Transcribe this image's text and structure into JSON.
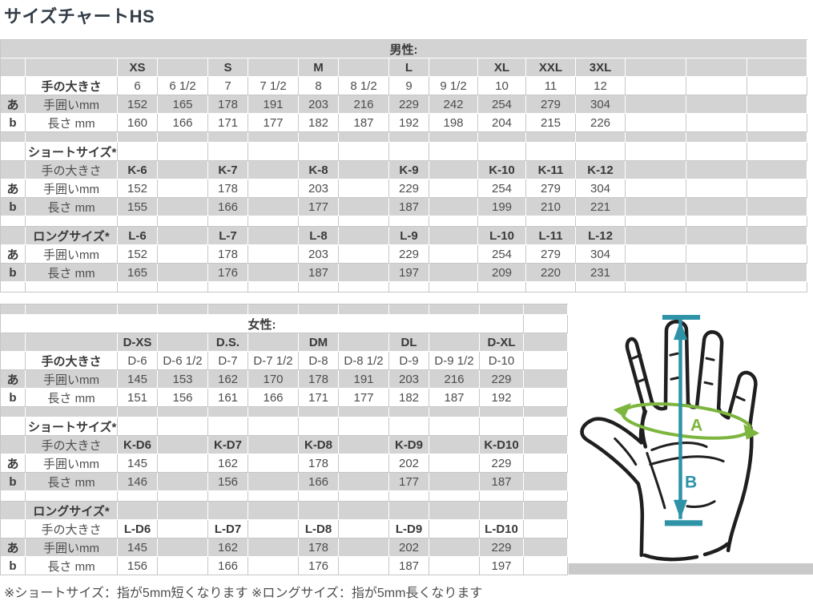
{
  "title": "サイズチャートHS",
  "footer_note": "※ショートサイズ：指が5mm短くなります ※ロングサイズ：指が5mm長くなります",
  "colors": {
    "row_shade": "#d3d3d3",
    "border_light": "#c7c7c7",
    "title_text": "#333d47",
    "ink": "#1f1f1f",
    "teal": "#2f93a8",
    "green": "#7db53f"
  },
  "diagram": {
    "label_a": "A",
    "label_b": "B",
    "description": "hand-with-girth-A-and-length-B-measurements"
  },
  "men_table": {
    "rows": [
      {
        "bg": "grey",
        "cells": [
          {
            "c": 0,
            "s": 16,
            "t": "男性:",
            "b": 1,
            "n": "men-caption"
          }
        ]
      },
      {
        "bg": "grey",
        "cells": [
          {
            "c": 2,
            "t": "XS",
            "b": 1,
            "n": "size-header"
          },
          {
            "c": 4,
            "t": "S",
            "b": 1,
            "n": "size-header"
          },
          {
            "c": 6,
            "t": "M",
            "b": 1,
            "n": "size-header"
          },
          {
            "c": 8,
            "t": "L",
            "b": 1,
            "n": "size-header"
          },
          {
            "c": 10,
            "t": "XL",
            "b": 1,
            "n": "size-header"
          },
          {
            "c": 11,
            "t": "XXL",
            "b": 1,
            "n": "size-header"
          },
          {
            "c": 12,
            "t": "3XL",
            "b": 1,
            "n": "size-header"
          }
        ]
      },
      {
        "bg": "white",
        "cells": [
          {
            "c": 1,
            "t": "手の大きさ",
            "b": 1,
            "a": "l",
            "n": "row-label"
          },
          {
            "c": 2,
            "t": "6"
          },
          {
            "c": 3,
            "t": "6 1/2"
          },
          {
            "c": 4,
            "t": "7"
          },
          {
            "c": 5,
            "t": "7 1/2"
          },
          {
            "c": 6,
            "t": "8"
          },
          {
            "c": 7,
            "t": "8 1/2"
          },
          {
            "c": 8,
            "t": "9"
          },
          {
            "c": 9,
            "t": "9 1/2"
          },
          {
            "c": 10,
            "t": "10"
          },
          {
            "c": 11,
            "t": "11"
          },
          {
            "c": 12,
            "t": "12"
          }
        ]
      },
      {
        "bg": "grey",
        "cells": [
          {
            "c": 0,
            "t": "あ",
            "b": 1,
            "n": "row-marker"
          },
          {
            "c": 1,
            "t": "手囲いmm",
            "a": "l",
            "n": "row-label"
          },
          {
            "c": 2,
            "t": "152"
          },
          {
            "c": 3,
            "t": "165"
          },
          {
            "c": 4,
            "t": "178"
          },
          {
            "c": 5,
            "t": "191"
          },
          {
            "c": 6,
            "t": "203"
          },
          {
            "c": 7,
            "t": "216"
          },
          {
            "c": 8,
            "t": "229"
          },
          {
            "c": 9,
            "t": "242"
          },
          {
            "c": 10,
            "t": "254"
          },
          {
            "c": 11,
            "t": "279"
          },
          {
            "c": 12,
            "t": "304"
          }
        ]
      },
      {
        "bg": "white",
        "cells": [
          {
            "c": 0,
            "t": "b",
            "b": 1,
            "n": "row-marker"
          },
          {
            "c": 1,
            "t": "長さ mm",
            "a": "l",
            "n": "row-label"
          },
          {
            "c": 2,
            "t": "160"
          },
          {
            "c": 3,
            "t": "166"
          },
          {
            "c": 4,
            "t": "171"
          },
          {
            "c": 5,
            "t": "177"
          },
          {
            "c": 6,
            "t": "182"
          },
          {
            "c": 7,
            "t": "187"
          },
          {
            "c": 8,
            "t": "192"
          },
          {
            "c": 9,
            "t": "198"
          },
          {
            "c": 10,
            "t": "204"
          },
          {
            "c": 11,
            "t": "215"
          },
          {
            "c": 12,
            "t": "226"
          }
        ]
      },
      {
        "bg": "grey",
        "h": "spacer"
      },
      {
        "bg": "white",
        "cells": [
          {
            "c": 1,
            "t": "ショートサイズ*",
            "b": 1,
            "a": "l",
            "n": "section-label"
          }
        ]
      },
      {
        "bg": "grey",
        "cells": [
          {
            "c": 1,
            "t": "手の大きさ",
            "a": "l",
            "n": "row-label"
          },
          {
            "c": 2,
            "t": "K-6",
            "b": 1,
            "n": "size-header"
          },
          {
            "c": 4,
            "t": "K-7",
            "b": 1,
            "n": "size-header"
          },
          {
            "c": 6,
            "t": "K-8",
            "b": 1,
            "n": "size-header"
          },
          {
            "c": 8,
            "t": "K-9",
            "b": 1,
            "n": "size-header"
          },
          {
            "c": 10,
            "t": "K-10",
            "b": 1,
            "n": "size-header"
          },
          {
            "c": 11,
            "t": "K-11",
            "b": 1,
            "n": "size-header"
          },
          {
            "c": 12,
            "t": "K-12",
            "b": 1,
            "n": "size-header"
          }
        ]
      },
      {
        "bg": "white",
        "cells": [
          {
            "c": 0,
            "t": "あ",
            "b": 1,
            "n": "row-marker"
          },
          {
            "c": 1,
            "t": "手囲いmm",
            "a": "l",
            "n": "row-label"
          },
          {
            "c": 2,
            "t": "152"
          },
          {
            "c": 4,
            "t": "178"
          },
          {
            "c": 6,
            "t": "203"
          },
          {
            "c": 8,
            "t": "229"
          },
          {
            "c": 10,
            "t": "254"
          },
          {
            "c": 11,
            "t": "279"
          },
          {
            "c": 12,
            "t": "304"
          }
        ]
      },
      {
        "bg": "grey",
        "cells": [
          {
            "c": 0,
            "t": "b",
            "b": 1,
            "n": "row-marker"
          },
          {
            "c": 1,
            "t": "長さ mm",
            "a": "l",
            "n": "row-label"
          },
          {
            "c": 2,
            "t": "155"
          },
          {
            "c": 4,
            "t": "166"
          },
          {
            "c": 6,
            "t": "177"
          },
          {
            "c": 8,
            "t": "187"
          },
          {
            "c": 10,
            "t": "199"
          },
          {
            "c": 11,
            "t": "210"
          },
          {
            "c": 12,
            "t": "221"
          }
        ]
      },
      {
        "bg": "white",
        "h": "spacer"
      },
      {
        "bg": "grey",
        "cells": [
          {
            "c": 1,
            "t": "ロングサイズ*",
            "b": 1,
            "a": "l",
            "n": "section-label"
          },
          {
            "c": 2,
            "t": "L-6",
            "b": 1,
            "n": "size-header"
          },
          {
            "c": 4,
            "t": "L-7",
            "b": 1,
            "n": "size-header"
          },
          {
            "c": 6,
            "t": "L-8",
            "b": 1,
            "n": "size-header"
          },
          {
            "c": 8,
            "t": "L-9",
            "b": 1,
            "n": "size-header"
          },
          {
            "c": 10,
            "t": "L-10",
            "b": 1,
            "n": "size-header"
          },
          {
            "c": 11,
            "t": "L-11",
            "b": 1,
            "n": "size-header"
          },
          {
            "c": 12,
            "t": "L-12",
            "b": 1,
            "n": "size-header"
          }
        ]
      },
      {
        "bg": "white",
        "cells": [
          {
            "c": 0,
            "t": "あ",
            "b": 1,
            "n": "row-marker"
          },
          {
            "c": 1,
            "t": "手囲いmm",
            "a": "l",
            "n": "row-label"
          },
          {
            "c": 2,
            "t": "152"
          },
          {
            "c": 4,
            "t": "178"
          },
          {
            "c": 6,
            "t": "203"
          },
          {
            "c": 8,
            "t": "229"
          },
          {
            "c": 10,
            "t": "254"
          },
          {
            "c": 11,
            "t": "279"
          },
          {
            "c": 12,
            "t": "304"
          }
        ]
      },
      {
        "bg": "grey",
        "cells": [
          {
            "c": 0,
            "t": "b",
            "b": 1,
            "n": "row-marker"
          },
          {
            "c": 1,
            "t": "長さ mm",
            "a": "l",
            "n": "row-label"
          },
          {
            "c": 2,
            "t": "165"
          },
          {
            "c": 4,
            "t": "176"
          },
          {
            "c": 6,
            "t": "187"
          },
          {
            "c": 8,
            "t": "197"
          },
          {
            "c": 10,
            "t": "209"
          },
          {
            "c": 11,
            "t": "220"
          },
          {
            "c": 12,
            "t": "231"
          }
        ]
      },
      {
        "bg": "white",
        "h": "spacer"
      }
    ]
  },
  "women_table": {
    "rows": [
      {
        "bg": "grey",
        "h": "spacer"
      },
      {
        "bg": "white",
        "cells": [
          {
            "c": 0,
            "s": 11,
            "t": "女性:",
            "b": 1,
            "n": "women-caption"
          }
        ]
      },
      {
        "bg": "grey",
        "cells": [
          {
            "c": 2,
            "t": "D-XS",
            "b": 1,
            "n": "size-header"
          },
          {
            "c": 4,
            "t": "D.S.",
            "b": 1,
            "n": "size-header"
          },
          {
            "c": 6,
            "t": "DM",
            "b": 1,
            "n": "size-header"
          },
          {
            "c": 8,
            "t": "DL",
            "b": 1,
            "n": "size-header"
          },
          {
            "c": 10,
            "t": "D-XL",
            "b": 1,
            "n": "size-header"
          }
        ]
      },
      {
        "bg": "white",
        "cells": [
          {
            "c": 1,
            "t": "手の大きさ",
            "b": 1,
            "a": "l",
            "n": "row-label"
          },
          {
            "c": 2,
            "t": "D-6"
          },
          {
            "c": 3,
            "t": "D-6 1/2"
          },
          {
            "c": 4,
            "t": "D-7"
          },
          {
            "c": 5,
            "t": "D-7 1/2"
          },
          {
            "c": 6,
            "t": "D-8"
          },
          {
            "c": 7,
            "t": "D-8 1/2"
          },
          {
            "c": 8,
            "t": "D-9"
          },
          {
            "c": 9,
            "t": "D-9 1/2"
          },
          {
            "c": 10,
            "t": "D-10"
          }
        ]
      },
      {
        "bg": "grey",
        "cells": [
          {
            "c": 0,
            "t": "あ",
            "b": 1,
            "n": "row-marker"
          },
          {
            "c": 1,
            "t": "手囲いmm",
            "a": "l",
            "n": "row-label"
          },
          {
            "c": 2,
            "t": "145"
          },
          {
            "c": 3,
            "t": "153"
          },
          {
            "c": 4,
            "t": "162"
          },
          {
            "c": 5,
            "t": "170"
          },
          {
            "c": 6,
            "t": "178"
          },
          {
            "c": 7,
            "t": "191"
          },
          {
            "c": 8,
            "t": "203"
          },
          {
            "c": 9,
            "t": "216"
          },
          {
            "c": 10,
            "t": "229"
          }
        ]
      },
      {
        "bg": "white",
        "cells": [
          {
            "c": 0,
            "t": "b",
            "b": 1,
            "n": "row-marker"
          },
          {
            "c": 1,
            "t": "長さ mm",
            "a": "l",
            "n": "row-label"
          },
          {
            "c": 2,
            "t": "151"
          },
          {
            "c": 3,
            "t": "156"
          },
          {
            "c": 4,
            "t": "161"
          },
          {
            "c": 5,
            "t": "166"
          },
          {
            "c": 6,
            "t": "171"
          },
          {
            "c": 7,
            "t": "177"
          },
          {
            "c": 8,
            "t": "182"
          },
          {
            "c": 9,
            "t": "187"
          },
          {
            "c": 10,
            "t": "192"
          }
        ]
      },
      {
        "bg": "grey",
        "h": "spacer"
      },
      {
        "bg": "white",
        "cells": [
          {
            "c": 1,
            "t": "ショートサイズ*",
            "b": 1,
            "a": "l",
            "n": "section-label"
          }
        ]
      },
      {
        "bg": "grey",
        "cells": [
          {
            "c": 1,
            "t": "手の大きさ",
            "a": "l",
            "n": "row-label"
          },
          {
            "c": 2,
            "t": "K-D6",
            "b": 1,
            "n": "size-header"
          },
          {
            "c": 4,
            "t": "K-D7",
            "b": 1,
            "n": "size-header"
          },
          {
            "c": 6,
            "t": "K-D8",
            "b": 1,
            "n": "size-header"
          },
          {
            "c": 8,
            "t": "K-D9",
            "b": 1,
            "n": "size-header"
          },
          {
            "c": 10,
            "t": "K-D10",
            "b": 1,
            "n": "size-header"
          }
        ]
      },
      {
        "bg": "white",
        "cells": [
          {
            "c": 0,
            "t": "あ",
            "b": 1,
            "n": "row-marker"
          },
          {
            "c": 1,
            "t": "手囲いmm",
            "a": "l",
            "n": "row-label"
          },
          {
            "c": 2,
            "t": "145"
          },
          {
            "c": 4,
            "t": "162"
          },
          {
            "c": 6,
            "t": "178"
          },
          {
            "c": 8,
            "t": "202"
          },
          {
            "c": 10,
            "t": "229"
          }
        ]
      },
      {
        "bg": "grey",
        "cells": [
          {
            "c": 0,
            "t": "b",
            "b": 1,
            "n": "row-marker"
          },
          {
            "c": 1,
            "t": "長さ mm",
            "a": "l",
            "n": "row-label"
          },
          {
            "c": 2,
            "t": "146"
          },
          {
            "c": 4,
            "t": "156"
          },
          {
            "c": 6,
            "t": "166"
          },
          {
            "c": 8,
            "t": "177"
          },
          {
            "c": 10,
            "t": "187"
          }
        ]
      },
      {
        "bg": "white",
        "h": "spacer"
      },
      {
        "bg": "grey",
        "cells": [
          {
            "c": 1,
            "t": "ロングサイズ*",
            "b": 1,
            "a": "l",
            "n": "section-label"
          }
        ]
      },
      {
        "bg": "white",
        "cells": [
          {
            "c": 1,
            "t": "手の大きさ",
            "a": "l",
            "n": "row-label"
          },
          {
            "c": 2,
            "t": "L-D6",
            "b": 1,
            "n": "size-header"
          },
          {
            "c": 4,
            "t": "L-D7",
            "b": 1,
            "n": "size-header"
          },
          {
            "c": 6,
            "t": "L-D8",
            "b": 1,
            "n": "size-header"
          },
          {
            "c": 8,
            "t": "L-D9",
            "b": 1,
            "n": "size-header"
          },
          {
            "c": 10,
            "t": "L-D10",
            "b": 1,
            "n": "size-header"
          }
        ]
      },
      {
        "bg": "grey",
        "cells": [
          {
            "c": 0,
            "t": "あ",
            "b": 1,
            "n": "row-marker"
          },
          {
            "c": 1,
            "t": "手囲いmm",
            "a": "l",
            "n": "row-label"
          },
          {
            "c": 2,
            "t": "145"
          },
          {
            "c": 4,
            "t": "162"
          },
          {
            "c": 6,
            "t": "178"
          },
          {
            "c": 8,
            "t": "202"
          },
          {
            "c": 10,
            "t": "229"
          }
        ]
      },
      {
        "bg": "white",
        "cells": [
          {
            "c": 0,
            "t": "b",
            "b": 1,
            "n": "row-marker"
          },
          {
            "c": 1,
            "t": "長さ mm",
            "a": "l",
            "n": "row-label"
          },
          {
            "c": 2,
            "t": "156"
          },
          {
            "c": 4,
            "t": "166"
          },
          {
            "c": 6,
            "t": "176"
          },
          {
            "c": 8,
            "t": "187"
          },
          {
            "c": 10,
            "t": "197"
          }
        ]
      }
    ]
  }
}
